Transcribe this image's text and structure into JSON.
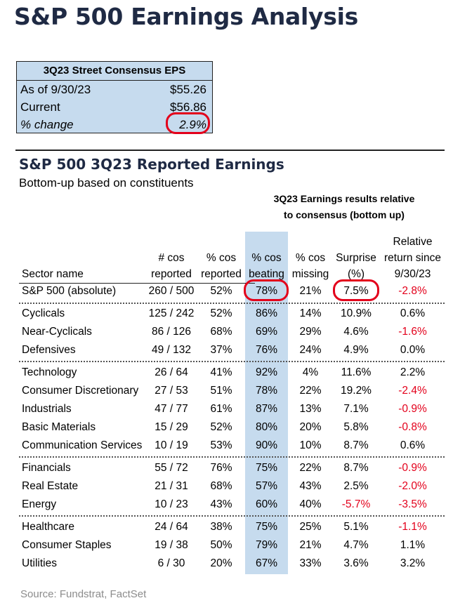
{
  "title": "S&P 500 Earnings Analysis",
  "consensus": {
    "header": "3Q23 Street Consensus EPS",
    "rows": [
      {
        "label": "As of 9/30/23",
        "value": "$55.26"
      },
      {
        "label": "Current",
        "value": "$56.86"
      },
      {
        "label": "% change",
        "value": "2.9%"
      }
    ]
  },
  "section": {
    "title": "S&P 500 3Q23 Reported Earnings",
    "subtitle": "Bottom-up based on constituents",
    "note_line1": "3Q23 Earnings results relative",
    "note_line2": "to consensus (bottom up)"
  },
  "columns": [
    {
      "line1": "",
      "line2": "",
      "line3": "Sector name"
    },
    {
      "line1": "",
      "line2": "# cos",
      "line3": "reported"
    },
    {
      "line1": "",
      "line2": "% cos",
      "line3": "reported"
    },
    {
      "line1": "",
      "line2": "% cos",
      "line3": "beating"
    },
    {
      "line1": "",
      "line2": "% cos",
      "line3": "missing"
    },
    {
      "line1": "",
      "line2": "Surprise",
      "line3": "(%)"
    },
    {
      "line1": "Relative",
      "line2": "return since",
      "line3": "9/30/23"
    }
  ],
  "rows": [
    {
      "sector": "S&P 500 (absolute)",
      "reported": "260 / 500",
      "pct_reported": "52%",
      "beating": "78%",
      "missing": "21%",
      "surprise": "7.5%",
      "rel_return": "-2.8%"
    },
    {
      "sector": "Cyclicals",
      "reported": "125 / 242",
      "pct_reported": "52%",
      "beating": "86%",
      "missing": "14%",
      "surprise": "10.9%",
      "rel_return": "0.6%"
    },
    {
      "sector": "Near-Cyclicals",
      "reported": "86 / 126",
      "pct_reported": "68%",
      "beating": "69%",
      "missing": "29%",
      "surprise": "4.6%",
      "rel_return": "-1.6%"
    },
    {
      "sector": "Defensives",
      "reported": "49 / 132",
      "pct_reported": "37%",
      "beating": "76%",
      "missing": "24%",
      "surprise": "4.9%",
      "rel_return": "0.0%"
    },
    {
      "sector": "Technology",
      "reported": "26 / 64",
      "pct_reported": "41%",
      "beating": "92%",
      "missing": "4%",
      "surprise": "11.6%",
      "rel_return": "2.2%"
    },
    {
      "sector": "Consumer Discretionary",
      "reported": "27 / 53",
      "pct_reported": "51%",
      "beating": "78%",
      "missing": "22%",
      "surprise": "19.2%",
      "rel_return": "-2.4%"
    },
    {
      "sector": "Industrials",
      "reported": "47 / 77",
      "pct_reported": "61%",
      "beating": "87%",
      "missing": "13%",
      "surprise": "7.1%",
      "rel_return": "-0.9%"
    },
    {
      "sector": "Basic Materials",
      "reported": "15 / 29",
      "pct_reported": "52%",
      "beating": "80%",
      "missing": "20%",
      "surprise": "5.8%",
      "rel_return": "-0.8%"
    },
    {
      "sector": "Communication Services",
      "reported": "10 / 19",
      "pct_reported": "53%",
      "beating": "90%",
      "missing": "10%",
      "surprise": "8.7%",
      "rel_return": "0.6%"
    },
    {
      "sector": "Financials",
      "reported": "55 / 72",
      "pct_reported": "76%",
      "beating": "75%",
      "missing": "22%",
      "surprise": "8.7%",
      "rel_return": "-0.9%"
    },
    {
      "sector": "Real Estate",
      "reported": "21 / 31",
      "pct_reported": "68%",
      "beating": "57%",
      "missing": "43%",
      "surprise": "2.5%",
      "rel_return": "-2.0%"
    },
    {
      "sector": "Energy",
      "reported": "10 / 23",
      "pct_reported": "43%",
      "beating": "60%",
      "missing": "40%",
      "surprise": "-5.7%",
      "rel_return": "-3.5%"
    },
    {
      "sector": "Healthcare",
      "reported": "24 / 64",
      "pct_reported": "38%",
      "beating": "75%",
      "missing": "25%",
      "surprise": "5.1%",
      "rel_return": "-1.1%"
    },
    {
      "sector": "Consumer Staples",
      "reported": "19 / 38",
      "pct_reported": "50%",
      "beating": "79%",
      "missing": "21%",
      "surprise": "4.7%",
      "rel_return": "1.1%"
    },
    {
      "sector": "Utilities",
      "reported": "6 / 30",
      "pct_reported": "20%",
      "beating": "67%",
      "missing": "33%",
      "surprise": "3.6%",
      "rel_return": "3.2%"
    }
  ],
  "source": "Source: Fundstrat, FactSet",
  "colors": {
    "title": "#1f2a44",
    "highlight": "#c6dbee",
    "negative": "#e3001b",
    "circle": "#e3001b"
  }
}
